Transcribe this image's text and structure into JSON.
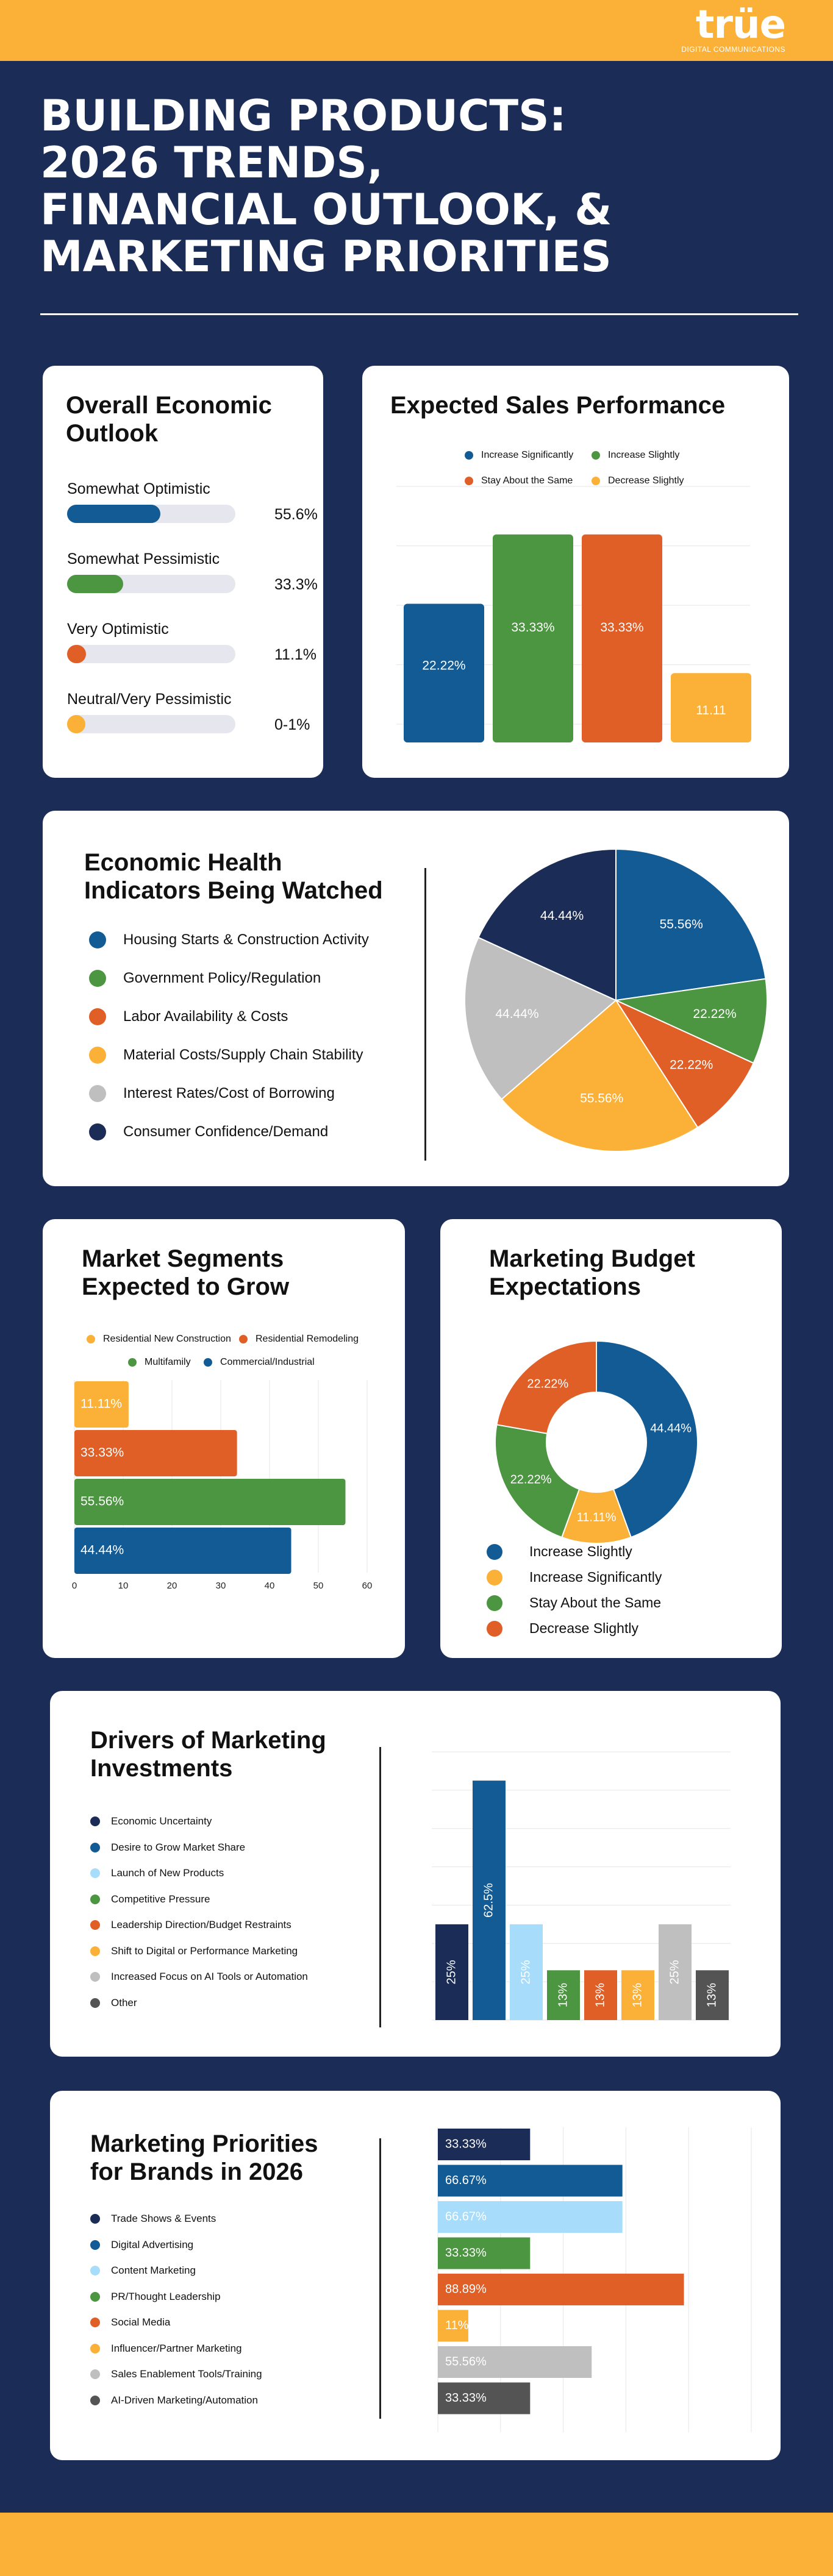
{
  "brand": {
    "logo_word": "trüe",
    "logo_sub": "DIGITAL COMMUNICATIONS",
    "colors": {
      "navy": "#1b2c56",
      "blue": "#135b95",
      "green": "#4c9641",
      "orange": "#e05f27",
      "yellow": "#fbb138",
      "gray": "#bfbfbf",
      "dark": "#1b2c56",
      "light_blue": "#a7ddfa",
      "charcoal": "#545454"
    }
  },
  "hero": {
    "line1": "BUILDING PRODUCTS:",
    "line2": "2026 TRENDS,",
    "line3": "FINANCIAL OUTLOOK, &",
    "line4": "MARKETING PRIORITIES"
  },
  "economic_outlook": {
    "title_line1": "Overall Economic",
    "title_line2": "Outlook",
    "items": [
      {
        "label": "Somewhat Optimistic",
        "value_text": "55.6%",
        "fraction": 0.556,
        "color": "#135b95"
      },
      {
        "label": "Somewhat Pessimistic",
        "value_text": "33.3%",
        "fraction": 0.333,
        "color": "#4c9641"
      },
      {
        "label": "Very Optimistic",
        "value_text": "11.1%",
        "fraction": 0.111,
        "color": "#e05f27"
      },
      {
        "label": "Neutral/Very Pessimistic",
        "value_text": "0-1%",
        "fraction": 0.01,
        "color": "#fbb138"
      }
    ]
  },
  "chart_data": [
    {
      "id": "sales",
      "type": "bar",
      "title": "Expected Sales Performance",
      "categories": [
        "Increase Significantly",
        "Increase Slightly",
        "Stay About the Same",
        "Decrease Slightly"
      ],
      "values": [
        22.22,
        33.33,
        33.33,
        11.11
      ],
      "labels": [
        "22.22%",
        "33.33%",
        "33.33%",
        "11.11"
      ],
      "colors": [
        "#135b95",
        "#4c9641",
        "#e05f27",
        "#fbb138"
      ],
      "ylim": [
        0,
        40
      ]
    },
    {
      "id": "indicators",
      "type": "pie",
      "title": "Economic Health Indicators Being Watched",
      "categories": [
        "Housing Starts & Construction Activity",
        "Government Policy/Regulation",
        "Labor Availability & Costs",
        "Material Costs/Supply Chain Stability",
        "Interest Rates/Cost of Borrowing",
        "Consumer Confidence/Demand"
      ],
      "values": [
        55.56,
        22.22,
        22.22,
        55.56,
        44.44,
        44.44
      ],
      "labels": [
        "55.56%",
        "22.22%",
        "22.22%",
        "55.56%",
        "44.44%",
        "44.44%"
      ],
      "colors": [
        "#135b95",
        "#4c9641",
        "#e05f27",
        "#fbb138",
        "#bfbfbf",
        "#1b2c56"
      ]
    },
    {
      "id": "segments",
      "type": "bar",
      "orientation": "horizontal",
      "title": "Market Segments Expected to Grow",
      "categories": [
        "Residential New Construction",
        "Residential Remodeling",
        "Multifamily",
        "Commercial/Industrial"
      ],
      "values": [
        11.11,
        33.33,
        55.56,
        44.44
      ],
      "labels": [
        "11.11%",
        "33.33%",
        "55.56%",
        "44.44%"
      ],
      "colors": [
        "#fbb138",
        "#e05f27",
        "#4c9641",
        "#135b95"
      ],
      "xlim": [
        0,
        60
      ],
      "xticks": [
        "0",
        "10",
        "20",
        "30",
        "40",
        "50",
        "60"
      ]
    },
    {
      "id": "budget",
      "type": "pie",
      "donut": true,
      "title": "Marketing Budget Expectations",
      "categories": [
        "Increase Slightly",
        "Increase Significantly",
        "Stay About the Same",
        "Decrease Slightly"
      ],
      "values": [
        44.44,
        11.11,
        22.22,
        22.22
      ],
      "labels": [
        "44.44%",
        "11.11%",
        "22.22%",
        "22.22%"
      ],
      "colors": [
        "#135b95",
        "#fbb138",
        "#4c9641",
        "#e05f27"
      ]
    },
    {
      "id": "drivers",
      "type": "bar",
      "title": "Drivers of Marketing Investments",
      "categories": [
        "Economic Uncertainty",
        "Desire to Grow Market Share",
        "Launch of New Products",
        "Competitive Pressure",
        "Leadership Direction/Budget Restraints",
        "Shift to Digital or Performance Marketing",
        "Increased Focus on AI Tools or Automation",
        "Other"
      ],
      "values": [
        25,
        62.5,
        25,
        13,
        13,
        13,
        25,
        13
      ],
      "labels": [
        "25%",
        "62.5%",
        "25%",
        "13%",
        "13%",
        "13%",
        "25%",
        "13%"
      ],
      "colors": [
        "#1b2c56",
        "#135b95",
        "#a7ddfa",
        "#4c9641",
        "#e05f27",
        "#fbb138",
        "#bfbfbf",
        "#545454"
      ],
      "ylim": [
        0,
        70
      ]
    },
    {
      "id": "priorities",
      "type": "bar",
      "orientation": "horizontal",
      "title": "Marketing Priorities for Brands in 2026",
      "categories": [
        "Trade Shows & Events",
        "Digital Advertising",
        "Content Marketing",
        "PR/Thought Leadership",
        "Social Media",
        "Influencer/Partner Marketing",
        "Sales Enablement Tools/Training",
        "AI-Driven Marketing/Automation"
      ],
      "values": [
        33.33,
        66.67,
        66.67,
        33.33,
        88.89,
        11,
        55.56,
        33.33
      ],
      "labels": [
        "33.33%",
        "66.67%",
        "66.67%",
        "33.33%",
        "88.89%",
        "11%",
        "55.56%",
        "33.33%"
      ],
      "colors": [
        "#1b2c56",
        "#135b95",
        "#a7ddfa",
        "#4c9641",
        "#e05f27",
        "#fbb138",
        "#bfbfbf",
        "#545454"
      ],
      "xlim": [
        0,
        100
      ]
    }
  ],
  "cards": {
    "indicators_title_line1": "Economic Health",
    "indicators_title_line2": "Indicators Being Watched",
    "segments_title_line1": "Market Segments",
    "segments_title_line2": "Expected to Grow",
    "budget_title_line1": "Marketing Budget",
    "budget_title_line2": "Expectations",
    "drivers_title_line1": "Drivers of Marketing",
    "drivers_title_line2": "Investments",
    "priorities_title_line1": "Marketing Priorities",
    "priorities_title_line2": "for Brands in 2026"
  }
}
